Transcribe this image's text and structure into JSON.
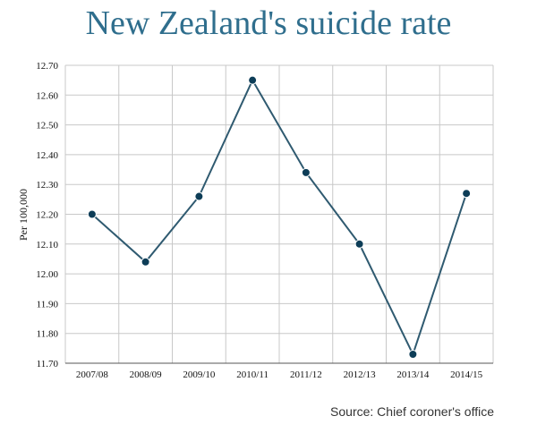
{
  "chart_data": {
    "type": "line",
    "title": "New Zealand's suicide rate",
    "ylabel": "Per 100,000",
    "xlabel": "",
    "categories": [
      "2007/08",
      "2008/09",
      "2009/10",
      "2010/11",
      "2011/12",
      "2012/13",
      "2013/14",
      "2014/15"
    ],
    "values": [
      12.2,
      12.04,
      12.26,
      12.65,
      12.34,
      12.1,
      11.73,
      12.27
    ],
    "ylim": [
      11.7,
      12.7
    ],
    "yticks": [
      "11.70",
      "11.80",
      "11.90",
      "12.00",
      "12.10",
      "12.20",
      "12.30",
      "12.40",
      "12.50",
      "12.60",
      "12.70"
    ],
    "grid": true,
    "line_color": "#2f5a70",
    "marker_color": "#0d3d57"
  },
  "source": "Source: Chief coroner's office"
}
